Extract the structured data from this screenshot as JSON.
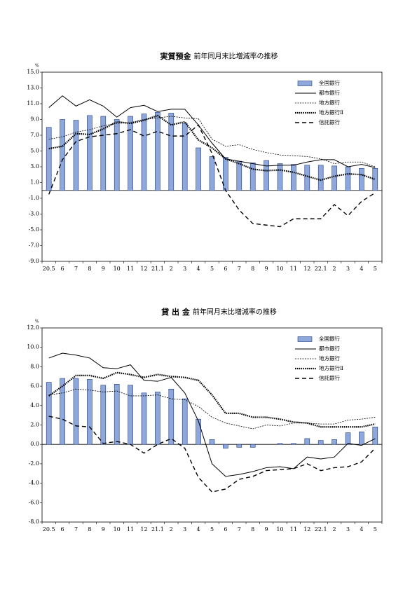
{
  "chart_data": [
    {
      "type": "bar-line",
      "title": "実質預金",
      "subtitle": "前年同月末比増減率の推移",
      "ylabel": "%",
      "categories": [
        "20.5",
        "6",
        "7",
        "8",
        "9",
        "10",
        "11",
        "12",
        "21.1",
        "2",
        "3",
        "4",
        "5",
        "6",
        "7",
        "8",
        "9",
        "10",
        "11",
        "12",
        "22.1",
        "2",
        "3",
        "4",
        "5"
      ],
      "ylim": [
        -9,
        15
      ],
      "yticks": [
        {
          "value": 15,
          "label": "15.0"
        },
        {
          "value": 13,
          "label": "13.0"
        },
        {
          "value": 11,
          "label": "11.0"
        },
        {
          "value": 9,
          "label": "9.0"
        },
        {
          "value": 7,
          "label": "7.0"
        },
        {
          "value": 5,
          "label": "5.0"
        },
        {
          "value": 3,
          "label": "3.0"
        },
        {
          "value": 1,
          "label": "1.0"
        },
        {
          "value": -1,
          "label": "-1.0"
        },
        {
          "value": -3,
          "label": "-3.0"
        },
        {
          "value": -5,
          "label": "-5.0"
        },
        {
          "value": -7,
          "label": "-7.0"
        },
        {
          "value": -9,
          "label": "-9.0"
        }
      ],
      "grid": false,
      "legend": "upper right",
      "series": [
        {
          "name": "全国銀行",
          "style": "bar",
          "color": "#8fa8dc",
          "values": [
            8.0,
            9.0,
            8.9,
            9.5,
            9.4,
            9.0,
            9.4,
            9.7,
            9.9,
            9.8,
            8.5,
            5.4,
            4.3,
            4.2,
            3.7,
            3.5,
            3.8,
            3.4,
            3.3,
            3.2,
            3.2,
            3.1,
            3.0,
            2.8,
            2.8
          ]
        },
        {
          "name": "都市銀行",
          "style": "solid",
          "color": "#000000",
          "values": [
            10.5,
            12.0,
            10.7,
            11.5,
            10.7,
            9.3,
            10.5,
            10.8,
            10.0,
            10.3,
            10.3,
            8.3,
            6.0,
            4.0,
            3.7,
            3.4,
            3.1,
            3.2,
            3.2,
            3.6,
            3.9,
            3.9,
            3.0,
            3.3,
            2.9
          ]
        },
        {
          "name": "地方銀行",
          "style": "dotted",
          "color": "#000000",
          "values": [
            6.5,
            6.8,
            7.4,
            7.7,
            8.2,
            8.5,
            8.6,
            9.0,
            9.2,
            9.4,
            9.2,
            9.1,
            6.5,
            5.6,
            5.8,
            5.2,
            4.8,
            4.5,
            4.4,
            4.3,
            4.0,
            3.4,
            3.6,
            3.6,
            3.0
          ]
        },
        {
          "name": "地方銀行Ⅱ",
          "style": "thick-dotted",
          "color": "#000000",
          "values": [
            5.3,
            5.6,
            7.2,
            7.1,
            7.8,
            8.7,
            8.5,
            8.9,
            9.5,
            8.3,
            8.7,
            6.4,
            5.4,
            4.0,
            3.4,
            2.7,
            2.5,
            2.6,
            2.3,
            1.8,
            1.3,
            1.8,
            2.1,
            2.0,
            1.4
          ]
        },
        {
          "name": "信託銀行",
          "style": "dashed",
          "color": "#000000",
          "values": [
            -0.5,
            3.9,
            6.2,
            6.8,
            7.0,
            7.2,
            7.7,
            6.9,
            7.5,
            6.9,
            6.9,
            8.3,
            4.7,
            0.0,
            -2.5,
            -4.2,
            -4.4,
            -4.6,
            -3.6,
            -3.6,
            -3.6,
            -1.8,
            -3.2,
            -1.4,
            -0.3
          ]
        }
      ]
    },
    {
      "type": "bar-line",
      "title": "貸 出 金",
      "subtitle": "前年同月末比増減率の推移",
      "ylabel": "%",
      "categories": [
        "20.5",
        "6",
        "7",
        "8",
        "9",
        "10",
        "11",
        "12",
        "21.1",
        "2",
        "3",
        "4",
        "5",
        "6",
        "7",
        "8",
        "9",
        "10",
        "11",
        "12",
        "22.1",
        "2",
        "3",
        "4",
        "5"
      ],
      "ylim": [
        -8,
        12
      ],
      "yticks": [
        {
          "value": 12,
          "label": "12.0"
        },
        {
          "value": 10,
          "label": "10.0"
        },
        {
          "value": 8,
          "label": "8.0"
        },
        {
          "value": 6,
          "label": "6.0"
        },
        {
          "value": 4,
          "label": "4.0"
        },
        {
          "value": 2,
          "label": "2.0"
        },
        {
          "value": 0,
          "label": "0.0"
        },
        {
          "value": -2,
          "label": "-2.0"
        },
        {
          "value": -4,
          "label": "-4.0"
        },
        {
          "value": -6,
          "label": "-6.0"
        },
        {
          "value": -8,
          "label": "-8.0"
        }
      ],
      "grid": false,
      "legend": "upper right",
      "series": [
        {
          "name": "全国銀行",
          "style": "bar",
          "color": "#8fa8dc",
          "values": [
            6.4,
            6.8,
            6.8,
            6.7,
            6.1,
            6.2,
            6.1,
            5.3,
            5.4,
            5.7,
            4.7,
            2.6,
            0.5,
            -0.4,
            -0.3,
            -0.3,
            0.0,
            0.1,
            0.1,
            0.6,
            0.4,
            0.5,
            1.2,
            1.3,
            1.8
          ]
        },
        {
          "name": "都市銀行",
          "style": "solid",
          "color": "#000000",
          "values": [
            8.9,
            9.4,
            9.2,
            8.9,
            7.9,
            7.8,
            8.2,
            6.6,
            6.5,
            6.9,
            5.3,
            2.4,
            -2.0,
            -3.3,
            -3.1,
            -2.8,
            -2.4,
            -2.3,
            -2.5,
            -1.3,
            -1.5,
            -1.3,
            0.1,
            -0.1,
            0.6
          ]
        },
        {
          "name": "地方銀行",
          "style": "dotted",
          "color": "#000000",
          "values": [
            5.1,
            5.3,
            5.7,
            5.6,
            5.4,
            5.5,
            5.0,
            5.0,
            5.1,
            4.7,
            4.6,
            3.9,
            2.8,
            2.2,
            1.9,
            1.6,
            2.0,
            1.9,
            2.2,
            2.2,
            2.1,
            2.1,
            2.5,
            2.6,
            2.8
          ]
        },
        {
          "name": "地方銀行Ⅱ",
          "style": "thick-dotted",
          "color": "#000000",
          "values": [
            5.0,
            6.0,
            7.1,
            7.1,
            6.8,
            7.4,
            7.2,
            6.9,
            7.2,
            7.0,
            6.9,
            6.6,
            5.1,
            3.2,
            3.2,
            2.8,
            2.8,
            2.6,
            2.3,
            2.2,
            1.8,
            1.8,
            1.8,
            1.8,
            2.1
          ]
        },
        {
          "name": "信託銀行",
          "style": "dashed",
          "color": "#000000",
          "values": [
            2.9,
            2.6,
            1.9,
            1.8,
            0.1,
            0.3,
            0.0,
            -0.9,
            0.0,
            0.6,
            -0.4,
            -3.4,
            -4.9,
            -4.6,
            -3.6,
            -3.3,
            -2.7,
            -2.6,
            -2.5,
            -2.0,
            -2.7,
            -2.4,
            -2.3,
            -1.8,
            -0.4
          ]
        }
      ]
    }
  ]
}
